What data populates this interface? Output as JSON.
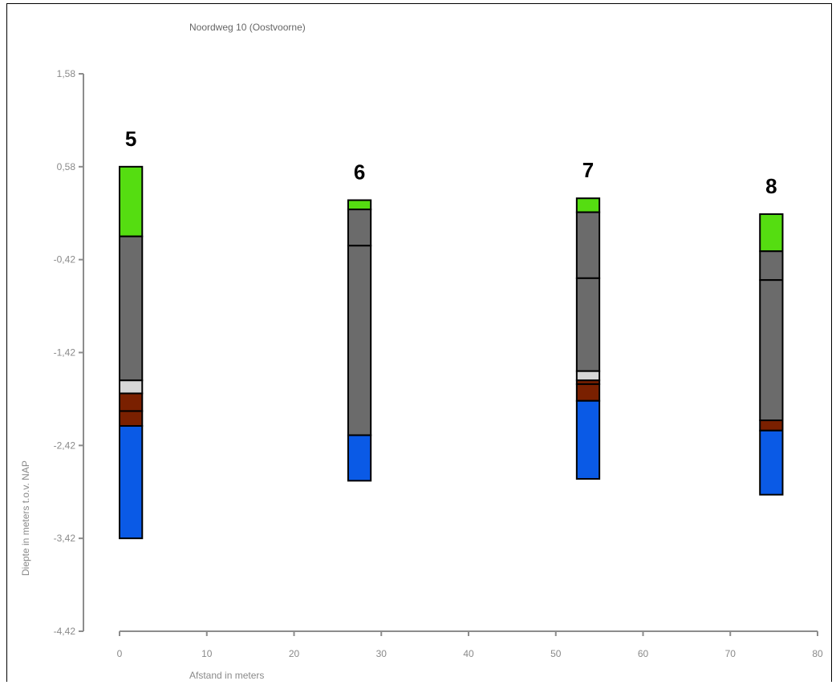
{
  "chart_data": {
    "type": "bar",
    "title": "Noordweg 10 (Oostvoorne)",
    "xlabel": "Afstand in meters",
    "ylabel": "Diepte in meters t.o.v. NAP",
    "xlim": [
      0,
      80
    ],
    "ylim": [
      -4.42,
      1.58
    ],
    "x_ticks": [
      0,
      10,
      20,
      30,
      40,
      50,
      60,
      70,
      80
    ],
    "y_ticks": [
      1.58,
      0.58,
      -0.42,
      -1.42,
      -2.42,
      -3.42,
      -4.42
    ],
    "y_tick_labels": [
      "1,58",
      "0,58",
      "-0,42",
      "-1,42",
      "-2,42",
      "-3,42",
      "-4,42"
    ],
    "grid": false,
    "colors": {
      "green": "#55dd11",
      "gray": "#6b6b6b",
      "lightgray": "#d6d6d6",
      "brown": "#7a2000",
      "blue": "#0a5ae6"
    },
    "boreholes": [
      {
        "label": "5",
        "x_start": 0,
        "x_end": 2.6,
        "layers": [
          {
            "top": 0.58,
            "bottom": -0.17,
            "color": "green"
          },
          {
            "top": -0.17,
            "bottom": -1.72,
            "color": "gray"
          },
          {
            "top": -1.72,
            "bottom": -1.86,
            "color": "lightgray"
          },
          {
            "top": -1.86,
            "bottom": -2.05,
            "color": "brown"
          },
          {
            "top": -2.05,
            "bottom": -2.21,
            "color": "brown"
          },
          {
            "top": -2.21,
            "bottom": -3.42,
            "color": "blue"
          }
        ]
      },
      {
        "label": "6",
        "x_start": 26.2,
        "x_end": 28.8,
        "layers": [
          {
            "top": 0.22,
            "bottom": 0.12,
            "color": "green"
          },
          {
            "top": 0.12,
            "bottom": -0.27,
            "color": "gray"
          },
          {
            "top": -0.27,
            "bottom": -2.31,
            "color": "gray"
          },
          {
            "top": -2.31,
            "bottom": -2.8,
            "color": "blue"
          }
        ]
      },
      {
        "label": "7",
        "x_start": 52.4,
        "x_end": 55.0,
        "layers": [
          {
            "top": 0.24,
            "bottom": 0.09,
            "color": "green"
          },
          {
            "top": 0.09,
            "bottom": -0.62,
            "color": "gray"
          },
          {
            "top": -0.62,
            "bottom": -1.62,
            "color": "gray"
          },
          {
            "top": -1.62,
            "bottom": -1.72,
            "color": "lightgray"
          },
          {
            "top": -1.72,
            "bottom": -1.76,
            "color": "brown"
          },
          {
            "top": -1.76,
            "bottom": -1.94,
            "color": "brown"
          },
          {
            "top": -1.94,
            "bottom": -2.78,
            "color": "blue"
          }
        ]
      },
      {
        "label": "8",
        "x_start": 73.4,
        "x_end": 76.0,
        "layers": [
          {
            "top": 0.07,
            "bottom": -0.33,
            "color": "green"
          },
          {
            "top": -0.33,
            "bottom": -0.64,
            "color": "gray"
          },
          {
            "top": -0.64,
            "bottom": -2.15,
            "color": "gray"
          },
          {
            "top": -2.15,
            "bottom": -2.26,
            "color": "brown"
          },
          {
            "top": -2.26,
            "bottom": -2.95,
            "color": "blue"
          }
        ]
      }
    ]
  }
}
